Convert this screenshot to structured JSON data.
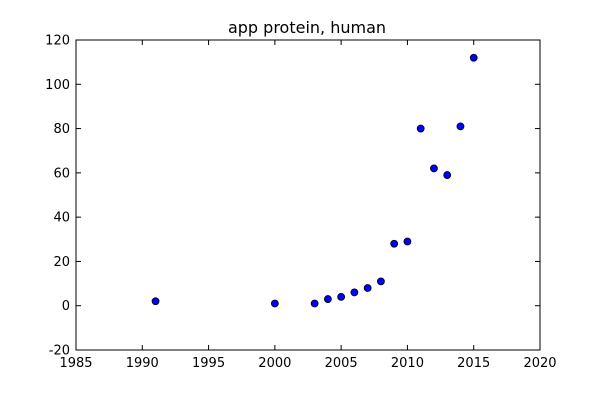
{
  "chart_data": {
    "type": "scatter",
    "title": "app protein, human",
    "xlabel": "",
    "ylabel": "",
    "xlim": [
      1985,
      2020
    ],
    "ylim": [
      -20,
      120
    ],
    "x_ticks": [
      1985,
      1990,
      1995,
      2000,
      2005,
      2010,
      2015,
      2020
    ],
    "y_ticks": [
      -20,
      0,
      20,
      40,
      60,
      80,
      100,
      120
    ],
    "grid": false,
    "marker_color": "#0000ff",
    "marker_edge_color": "#000000",
    "points": [
      {
        "x": 1991,
        "y": 2
      },
      {
        "x": 2000,
        "y": 1
      },
      {
        "x": 2003,
        "y": 1
      },
      {
        "x": 2004,
        "y": 3
      },
      {
        "x": 2005,
        "y": 4
      },
      {
        "x": 2006,
        "y": 6
      },
      {
        "x": 2007,
        "y": 8
      },
      {
        "x": 2008,
        "y": 11
      },
      {
        "x": 2009,
        "y": 28
      },
      {
        "x": 2010,
        "y": 29
      },
      {
        "x": 2011,
        "y": 80
      },
      {
        "x": 2012,
        "y": 62
      },
      {
        "x": 2013,
        "y": 59
      },
      {
        "x": 2014,
        "y": 81
      },
      {
        "x": 2015,
        "y": 112
      }
    ]
  }
}
